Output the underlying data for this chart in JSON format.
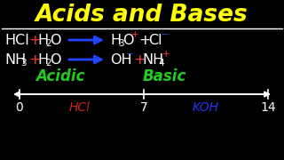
{
  "background_color": "#000000",
  "title": "Acids and Bases",
  "title_color": "#FFFF00",
  "title_fontsize": 19,
  "white": "#FFFFFF",
  "red": "#FF3333",
  "blue": "#2244FF",
  "green": "#22CC22",
  "hcl_color": "#CC2222",
  "koh_color": "#2233EE",
  "acidic_label": "Acidic",
  "basic_label": "Basic",
  "hcl_label": "HCl",
  "koh_label": "KOH"
}
